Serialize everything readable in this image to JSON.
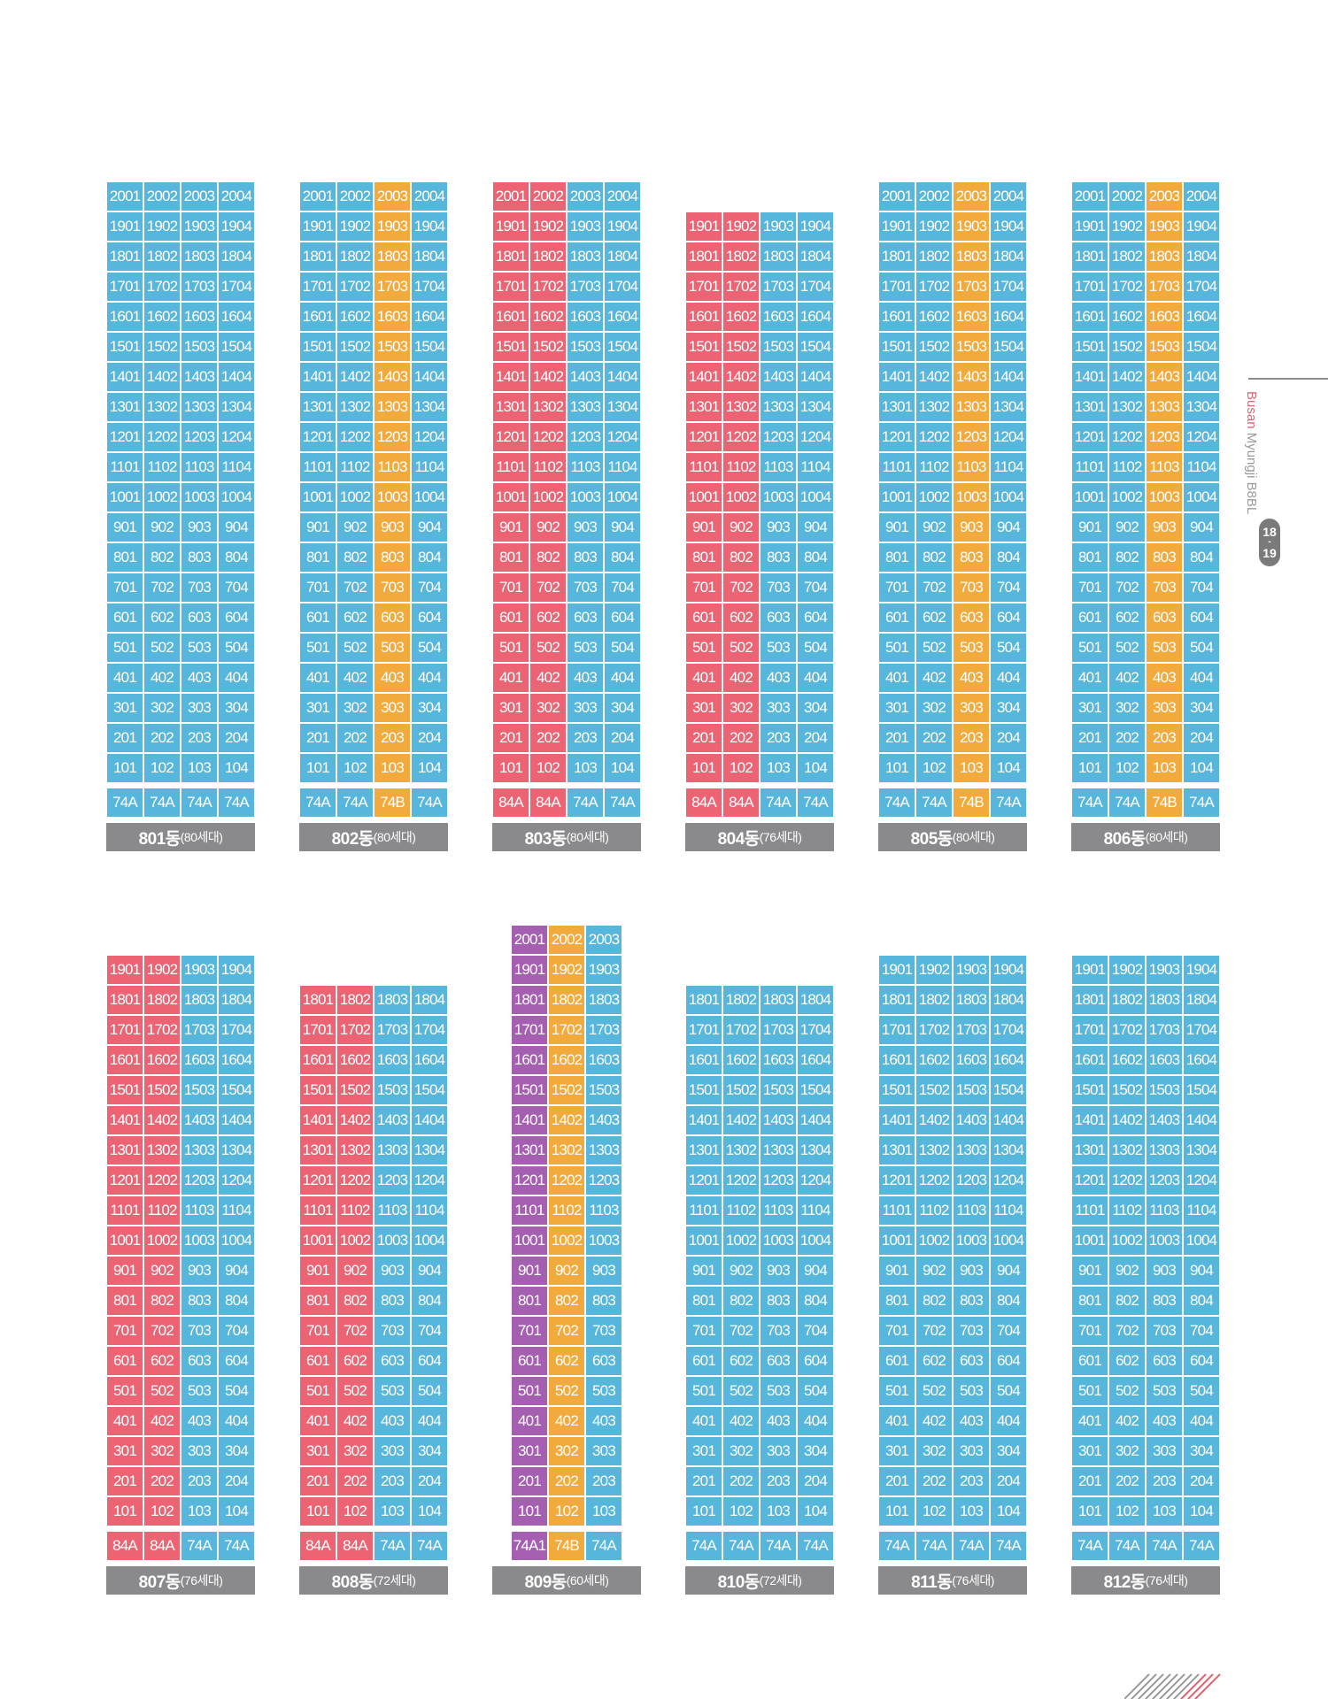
{
  "colors": {
    "A74": "#56b6dc",
    "A84": "#ec6474",
    "B74": "#f3aa3c",
    "A741": "#a55fb0",
    "label_bg": "#8a8a8c"
  },
  "side": {
    "brand": "Busan",
    "rest": "Myungji B8BL",
    "page_top": "18",
    "page_sep": "-",
    "page_bottom": "19"
  },
  "buildings": [
    {
      "name": "801동",
      "units": "(80세대)",
      "floors": 20,
      "cols": [
        1,
        2,
        3,
        4
      ],
      "types": [
        "74A",
        "74A",
        "74A",
        "74A"
      ]
    },
    {
      "name": "802동",
      "units": "(80세대)",
      "floors": 20,
      "cols": [
        1,
        2,
        3,
        4
      ],
      "types": [
        "74A",
        "74A",
        "74B",
        "74A"
      ]
    },
    {
      "name": "803동",
      "units": "(80세대)",
      "floors": 20,
      "cols": [
        1,
        2,
        3,
        4
      ],
      "types": [
        "84A",
        "84A",
        "74A",
        "74A"
      ]
    },
    {
      "name": "804동",
      "units": "(76세대)",
      "floors": 19,
      "cols": [
        1,
        2,
        3,
        4
      ],
      "types": [
        "84A",
        "84A",
        "74A",
        "74A"
      ]
    },
    {
      "name": "805동",
      "units": "(80세대)",
      "floors": 20,
      "cols": [
        1,
        2,
        3,
        4
      ],
      "types": [
        "74A",
        "74A",
        "74B",
        "74A"
      ]
    },
    {
      "name": "806동",
      "units": "(80세대)",
      "floors": 20,
      "cols": [
        1,
        2,
        3,
        4
      ],
      "types": [
        "74A",
        "74A",
        "74B",
        "74A"
      ]
    },
    {
      "name": "807동",
      "units": "(76세대)",
      "floors": 19,
      "cols": [
        1,
        2,
        3,
        4
      ],
      "types": [
        "84A",
        "84A",
        "74A",
        "74A"
      ]
    },
    {
      "name": "808동",
      "units": "(72세대)",
      "floors": 18,
      "cols": [
        1,
        2,
        3,
        4
      ],
      "types": [
        "84A",
        "84A",
        "74A",
        "74A"
      ]
    },
    {
      "name": "809동",
      "units": "(60세대)",
      "floors": 20,
      "cols": [
        1,
        2,
        3
      ],
      "types": [
        "74A1",
        "74B",
        "74A"
      ]
    },
    {
      "name": "810동",
      "units": "(72세대)",
      "floors": 18,
      "cols": [
        1,
        2,
        3,
        4
      ],
      "types": [
        "74A",
        "74A",
        "74A",
        "74A"
      ]
    },
    {
      "name": "811동",
      "units": "(76세대)",
      "floors": 19,
      "cols": [
        1,
        2,
        3,
        4
      ],
      "types": [
        "74A",
        "74A",
        "74A",
        "74A"
      ]
    },
    {
      "name": "812동",
      "units": "(76세대)",
      "floors": 19,
      "cols": [
        1,
        2,
        3,
        4
      ],
      "types": [
        "74A",
        "74A",
        "74A",
        "74A"
      ]
    }
  ]
}
